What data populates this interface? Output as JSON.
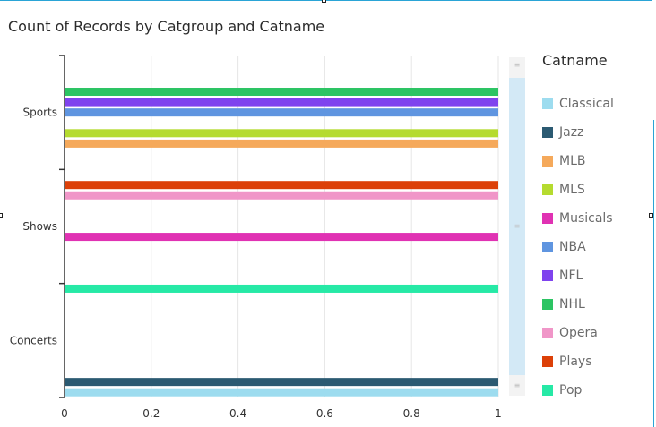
{
  "title": "Count of Records by Catgroup and Catname",
  "legend_title": "Catname",
  "chart_data": {
    "type": "bar",
    "orientation": "horizontal",
    "title": "Count of Records by Catgroup and Catname",
    "categories": [
      "Sports",
      "Shows",
      "Concerts"
    ],
    "xticks": [
      "0",
      "0.2",
      "0.4",
      "0.6",
      "0.8",
      "1"
    ],
    "xlim": [
      0,
      1
    ],
    "grid": true,
    "legend_placement": "right",
    "series": [
      {
        "name": "Classical",
        "color": "#9ddcef",
        "values": [
          0,
          0,
          1
        ]
      },
      {
        "name": "Jazz",
        "color": "#2b5a72",
        "values": [
          0,
          0,
          1
        ]
      },
      {
        "name": "MLB",
        "color": "#f5a95b",
        "values": [
          1,
          0,
          0
        ]
      },
      {
        "name": "MLS",
        "color": "#b5db2f",
        "values": [
          1,
          0,
          0
        ]
      },
      {
        "name": "Musicals",
        "color": "#e032b3",
        "values": [
          0,
          1,
          0
        ]
      },
      {
        "name": "NBA",
        "color": "#5f95e0",
        "values": [
          1,
          0,
          0
        ]
      },
      {
        "name": "NFL",
        "color": "#7f43ee",
        "values": [
          1,
          0,
          0
        ]
      },
      {
        "name": "NHL",
        "color": "#2cc463",
        "values": [
          1,
          0,
          0
        ]
      },
      {
        "name": "Opera",
        "color": "#f096c8",
        "values": [
          0,
          1,
          0
        ]
      },
      {
        "name": "Plays",
        "color": "#dc4008",
        "values": [
          0,
          1,
          0
        ]
      },
      {
        "name": "Pop",
        "color": "#26e9a6",
        "values": [
          0,
          0,
          1
        ]
      }
    ]
  }
}
